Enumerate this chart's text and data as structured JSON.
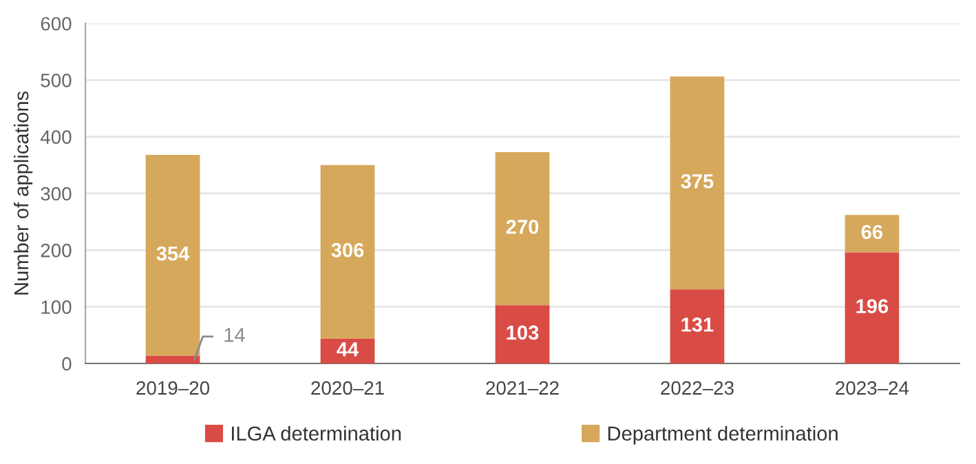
{
  "chart_data": {
    "type": "bar",
    "stacked": true,
    "categories": [
      "2019–20",
      "2020–21",
      "2021–22",
      "2022–23",
      "2023–24"
    ],
    "series": [
      {
        "name": "ILGA determination",
        "color": "#d94b45",
        "values": [
          14,
          44,
          103,
          131,
          196
        ]
      },
      {
        "name": "Department determination",
        "color": "#d6a85b",
        "values": [
          354,
          306,
          270,
          375,
          66
        ]
      }
    ],
    "ylabel": "Number of applications",
    "ylim": [
      0,
      600
    ],
    "yticks": [
      0,
      100,
      200,
      300,
      400,
      500,
      600
    ],
    "grid": "y",
    "legend": "bottom",
    "data_labels": true
  }
}
